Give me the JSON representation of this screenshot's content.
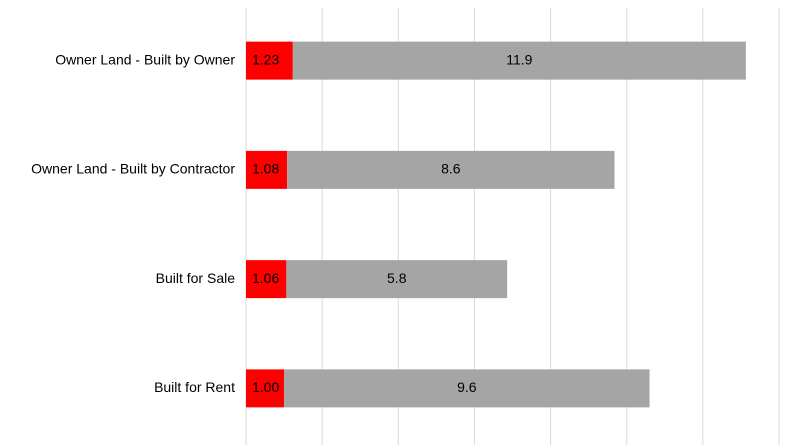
{
  "chart_data": {
    "type": "stacked-bar-horizontal",
    "categories": [
      "Owner Land - Built by Owner",
      "Owner Land - Built by Contractor",
      "Built for Sale",
      "Built for Rent"
    ],
    "series": [
      {
        "color": "#ff0000",
        "values": [
          1.23,
          1.08,
          1.06,
          1.0
        ],
        "value_labels": [
          "1.23",
          "1.08",
          "1.06",
          "1.00"
        ]
      },
      {
        "color": "#a5a5a5",
        "values": [
          11.9,
          8.6,
          5.8,
          9.6
        ]
      }
    ],
    "xlim": [
      0,
      14
    ],
    "xticks": [
      0,
      2,
      4,
      6,
      8,
      10,
      12,
      14
    ],
    "grid": true
  }
}
